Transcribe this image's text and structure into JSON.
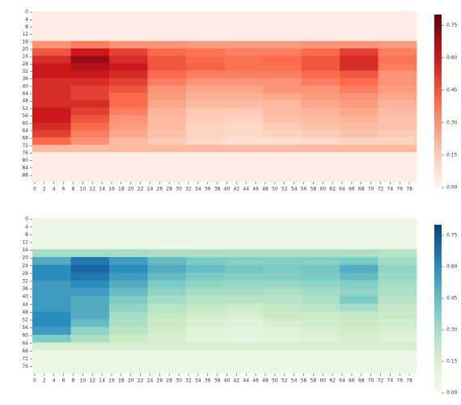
{
  "chart_data": [
    {
      "type": "heatmap",
      "xlim": [
        0,
        80
      ],
      "ylim": [
        0,
        92
      ],
      "xticks": [
        0,
        2,
        4,
        6,
        8,
        10,
        12,
        14,
        16,
        18,
        20,
        22,
        24,
        26,
        28,
        30,
        32,
        34,
        36,
        38,
        40,
        42,
        44,
        46,
        48,
        50,
        52,
        54,
        56,
        58,
        60,
        62,
        64,
        66,
        68,
        70,
        72,
        74,
        76,
        78
      ],
      "yticks": [
        0,
        4,
        8,
        12,
        16,
        20,
        24,
        28,
        32,
        36,
        40,
        44,
        48,
        52,
        56,
        60,
        64,
        68,
        72,
        76,
        80,
        84,
        88
      ],
      "colors": [
        "#fff5f0",
        "#fcbba1",
        "#fb6a4a",
        "#cb181d",
        "#67000d"
      ],
      "clim": [
        0,
        0.8
      ],
      "cticks": [
        {
          "value": 0,
          "label": "0.00"
        },
        0.15,
        {
          "value": 0.3,
          "label": "0.30"
        },
        0.45,
        {
          "value": 0.6,
          "label": "0.60"
        },
        0.75
      ],
      "values": [
        [
          0.03,
          0.03,
          0.03,
          0.03,
          0.03,
          0.03,
          0.03,
          0.03,
          0.03,
          0.03
        ],
        [
          0.03,
          0.03,
          0.03,
          0.03,
          0.03,
          0.03,
          0.03,
          0.03,
          0.03,
          0.03
        ],
        [
          0.03,
          0.03,
          0.03,
          0.03,
          0.03,
          0.03,
          0.03,
          0.03,
          0.03,
          0.03
        ],
        [
          0.03,
          0.03,
          0.03,
          0.03,
          0.03,
          0.03,
          0.03,
          0.03,
          0.03,
          0.03
        ],
        [
          0.3,
          0.35,
          0.3,
          0.3,
          0.28,
          0.28,
          0.28,
          0.3,
          0.3,
          0.28
        ],
        [
          0.45,
          0.6,
          0.5,
          0.4,
          0.38,
          0.35,
          0.35,
          0.4,
          0.5,
          0.35
        ],
        [
          0.55,
          0.7,
          0.55,
          0.45,
          0.4,
          0.38,
          0.4,
          0.45,
          0.55,
          0.38
        ],
        [
          0.6,
          0.65,
          0.6,
          0.45,
          0.42,
          0.38,
          0.38,
          0.45,
          0.55,
          0.35
        ],
        [
          0.6,
          0.6,
          0.55,
          0.4,
          0.35,
          0.35,
          0.35,
          0.4,
          0.45,
          0.3
        ],
        [
          0.55,
          0.55,
          0.5,
          0.35,
          0.3,
          0.3,
          0.3,
          0.35,
          0.4,
          0.3
        ],
        [
          0.55,
          0.5,
          0.45,
          0.3,
          0.25,
          0.25,
          0.3,
          0.3,
          0.35,
          0.28
        ],
        [
          0.55,
          0.5,
          0.4,
          0.28,
          0.22,
          0.22,
          0.25,
          0.28,
          0.3,
          0.25
        ],
        [
          0.55,
          0.55,
          0.4,
          0.25,
          0.2,
          0.2,
          0.2,
          0.25,
          0.28,
          0.22
        ],
        [
          0.6,
          0.5,
          0.35,
          0.22,
          0.15,
          0.15,
          0.2,
          0.22,
          0.25,
          0.2
        ],
        [
          0.6,
          0.45,
          0.3,
          0.2,
          0.15,
          0.12,
          0.18,
          0.2,
          0.22,
          0.18
        ],
        [
          0.55,
          0.4,
          0.28,
          0.2,
          0.12,
          0.1,
          0.15,
          0.18,
          0.2,
          0.18
        ],
        [
          0.5,
          0.35,
          0.25,
          0.18,
          0.12,
          0.1,
          0.12,
          0.15,
          0.18,
          0.15
        ],
        [
          0.4,
          0.3,
          0.2,
          0.15,
          0.1,
          0.08,
          0.08,
          0.1,
          0.12,
          0.12
        ],
        [
          0.2,
          0.2,
          0.2,
          0.2,
          0.2,
          0.2,
          0.2,
          0.2,
          0.2,
          0.2
        ],
        [
          0.03,
          0.03,
          0.03,
          0.03,
          0.03,
          0.03,
          0.03,
          0.03,
          0.03,
          0.03
        ],
        [
          0.03,
          0.03,
          0.03,
          0.03,
          0.03,
          0.03,
          0.03,
          0.03,
          0.03,
          0.03
        ],
        [
          0.03,
          0.03,
          0.03,
          0.03,
          0.03,
          0.03,
          0.03,
          0.03,
          0.03,
          0.03
        ],
        [
          0.03,
          0.03,
          0.03,
          0.03,
          0.03,
          0.03,
          0.03,
          0.03,
          0.03,
          0.03
        ]
      ]
    },
    {
      "type": "heatmap",
      "xlim": [
        0,
        80
      ],
      "ylim": [
        0,
        80
      ],
      "xticks": [
        0,
        2,
        4,
        6,
        8,
        10,
        12,
        14,
        16,
        18,
        20,
        22,
        24,
        26,
        28,
        30,
        32,
        34,
        36,
        38,
        40,
        42,
        44,
        46,
        48,
        50,
        52,
        54,
        56,
        58,
        60,
        62,
        64,
        66,
        68,
        70,
        72,
        74,
        76,
        78
      ],
      "yticks": [
        0,
        4,
        8,
        12,
        16,
        20,
        24,
        28,
        32,
        36,
        40,
        44,
        48,
        52,
        56,
        60,
        64,
        68,
        72,
        76
      ],
      "colors": [
        "#f7fcf0",
        "#ccebc5",
        "#7bccc4",
        "#2b8cbe",
        "#084081"
      ],
      "clim": [
        0,
        0.8
      ],
      "cticks": [
        {
          "value": 0,
          "label": "0.00"
        },
        0.15,
        {
          "value": 0.3,
          "label": "0.30"
        },
        0.45,
        {
          "value": 0.6,
          "label": "0.60"
        },
        0.75
      ],
      "values": [
        [
          0.05,
          0.05,
          0.05,
          0.05,
          0.05,
          0.05,
          0.05,
          0.05,
          0.05,
          0.05
        ],
        [
          0.05,
          0.05,
          0.05,
          0.05,
          0.05,
          0.05,
          0.05,
          0.05,
          0.05,
          0.05
        ],
        [
          0.05,
          0.05,
          0.05,
          0.05,
          0.05,
          0.05,
          0.05,
          0.05,
          0.05,
          0.05
        ],
        [
          0.05,
          0.05,
          0.05,
          0.05,
          0.05,
          0.05,
          0.05,
          0.05,
          0.05,
          0.05
        ],
        [
          0.3,
          0.3,
          0.3,
          0.28,
          0.28,
          0.28,
          0.28,
          0.28,
          0.28,
          0.25
        ],
        [
          0.5,
          0.65,
          0.55,
          0.45,
          0.4,
          0.38,
          0.38,
          0.38,
          0.4,
          0.3
        ],
        [
          0.6,
          0.7,
          0.6,
          0.5,
          0.45,
          0.42,
          0.4,
          0.42,
          0.5,
          0.35
        ],
        [
          0.6,
          0.65,
          0.55,
          0.45,
          0.4,
          0.38,
          0.38,
          0.4,
          0.45,
          0.33
        ],
        [
          0.55,
          0.6,
          0.5,
          0.4,
          0.35,
          0.33,
          0.32,
          0.35,
          0.38,
          0.3
        ],
        [
          0.55,
          0.55,
          0.45,
          0.35,
          0.3,
          0.3,
          0.28,
          0.3,
          0.35,
          0.28
        ],
        [
          0.55,
          0.5,
          0.4,
          0.3,
          0.25,
          0.25,
          0.25,
          0.28,
          0.4,
          0.25
        ],
        [
          0.55,
          0.5,
          0.35,
          0.25,
          0.22,
          0.2,
          0.22,
          0.25,
          0.3,
          0.22
        ],
        [
          0.6,
          0.5,
          0.3,
          0.22,
          0.18,
          0.15,
          0.2,
          0.2,
          0.22,
          0.2
        ],
        [
          0.6,
          0.45,
          0.28,
          0.2,
          0.15,
          0.12,
          0.15,
          0.18,
          0.2,
          0.18
        ],
        [
          0.55,
          0.35,
          0.25,
          0.18,
          0.12,
          0.1,
          0.12,
          0.15,
          0.18,
          0.15
        ],
        [
          0.4,
          0.28,
          0.2,
          0.15,
          0.1,
          0.08,
          0.1,
          0.12,
          0.15,
          0.12
        ],
        [
          0.15,
          0.15,
          0.15,
          0.15,
          0.15,
          0.15,
          0.15,
          0.15,
          0.15,
          0.15
        ],
        [
          0.05,
          0.05,
          0.05,
          0.05,
          0.05,
          0.05,
          0.05,
          0.05,
          0.05,
          0.05
        ],
        [
          0.05,
          0.05,
          0.05,
          0.05,
          0.05,
          0.05,
          0.05,
          0.05,
          0.05,
          0.05
        ],
        [
          0.05,
          0.05,
          0.05,
          0.05,
          0.05,
          0.05,
          0.05,
          0.05,
          0.05,
          0.05
        ]
      ]
    }
  ]
}
